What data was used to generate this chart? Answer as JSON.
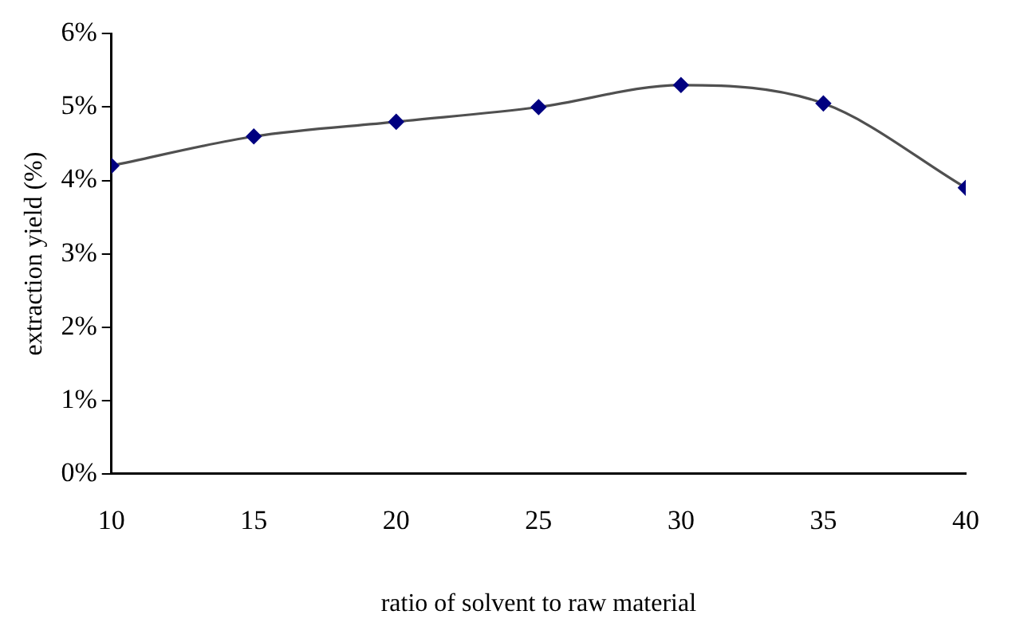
{
  "chart_data": {
    "type": "line",
    "xlabel": "ratio of solvent to raw material",
    "ylabel": "extraction yield (%)",
    "x": [
      10,
      15,
      20,
      25,
      30,
      35,
      40
    ],
    "series": [
      {
        "color": "#000080",
        "values": [
          4.2,
          4.6,
          4.8,
          5.0,
          5.3,
          5.05,
          3.9
        ]
      }
    ],
    "xlim": [
      10,
      40
    ],
    "xticks": [
      10,
      15,
      20,
      25,
      30,
      35,
      40
    ],
    "ylim": [
      0,
      6
    ],
    "yticks": [
      {
        "value": 0,
        "label": "0%"
      },
      {
        "value": 1,
        "label": "1%"
      },
      {
        "value": 2,
        "label": "2%"
      },
      {
        "value": 3,
        "label": "3%"
      },
      {
        "value": 4,
        "label": "4%"
      },
      {
        "value": 5,
        "label": "5%"
      },
      {
        "value": 6,
        "label": "6%"
      }
    ],
    "grid": false,
    "legend": false,
    "marker": "diamond",
    "line_style": "solid"
  }
}
